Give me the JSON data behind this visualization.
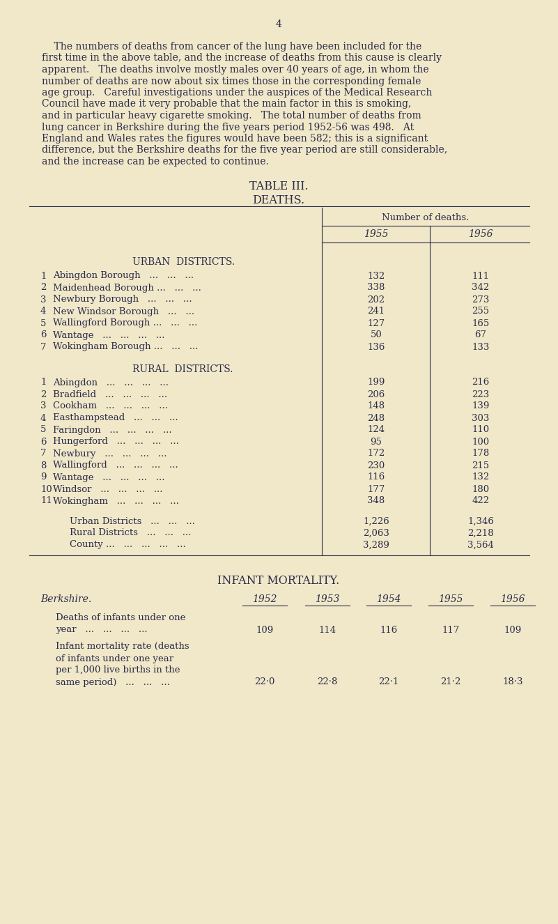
{
  "bg_color": "#f0e8c8",
  "text_color": "#2b2b4b",
  "page_number": "4",
  "para_lines": [
    "    The numbers of deaths from cancer of the lung have been included for the",
    "first time in the above table, and the increase of deaths from this cause is clearly",
    "apparent.   The deaths involve mostly males over 40 years of age, in whom the",
    "number of deaths are now about six times those in the corresponding female",
    "age group.   Careful investigations under the auspices of the Medical Research",
    "Council have made it very probable that the main factor in this is smoking,",
    "and in particular heavy cigarette smoking.   The total number of deaths from",
    "lung cancer in Berkshire during the five years period 1952-56 was 498.   At",
    "England and Wales rates the figures would have been 582; this is a significant",
    "difference, but the Berkshire deaths for the five year period are still considerable,",
    "and the increase can be expected to continue."
  ],
  "table_title_1": "TABLE III.",
  "table_title_2": "DEATHS.",
  "col_header_group": "Number of deaths.",
  "col_header_1": "1955",
  "col_header_2": "1956",
  "urban_header": "URBAN  DISTRICTS.",
  "urban_rows": [
    [
      "1",
      "Abingdon Borough   ...   ...   ...",
      "132",
      "111"
    ],
    [
      "2",
      "Maidenhead Borough ...   ...   ...",
      "338",
      "342"
    ],
    [
      "3",
      "Newbury Borough   ...   ...   ...",
      "202",
      "273"
    ],
    [
      "4",
      "New Windsor Borough   ...   ...",
      "241",
      "255"
    ],
    [
      "5",
      "Wallingford Borough ...   ...   ...",
      "127",
      "165"
    ],
    [
      "6",
      "Wantage   ...   ...   ...   ...",
      "50",
      "67"
    ],
    [
      "7",
      "Wokingham Borough ...   ...   ...",
      "136",
      "133"
    ]
  ],
  "rural_header": "RURAL  DISTRICTS.",
  "rural_rows": [
    [
      "1",
      "Abingdon   ...   ...   ...   ...",
      "199",
      "216"
    ],
    [
      "2",
      "Bradfield   ...   ...   ...   ...",
      "206",
      "223"
    ],
    [
      "3",
      "Cookham   ...   ...   ...   ...",
      "148",
      "139"
    ],
    [
      "4",
      "Easthampstead   ...   ...   ...",
      "248",
      "303"
    ],
    [
      "5",
      "Faringdon   ...   ...   ...   ...",
      "124",
      "110"
    ],
    [
      "6",
      "Hungerford   ...   ...   ...   ...",
      "95",
      "100"
    ],
    [
      "7",
      "Newbury   ...   ...   ...   ...",
      "172",
      "178"
    ],
    [
      "8",
      "Wallingford   ...   ...   ...   ...",
      "230",
      "215"
    ],
    [
      "9",
      "Wantage   ...   ...   ...   ...",
      "116",
      "132"
    ],
    [
      "10",
      "Windsor   ...   ...   ...   ...",
      "177",
      "180"
    ],
    [
      "11",
      "Wokingham   ...   ...   ...   ...",
      "348",
      "422"
    ]
  ],
  "totals_rows": [
    [
      "Urban Districts   ...   ...   ...",
      "1,226",
      "1,346"
    ],
    [
      "Rural Districts   ...   ...   ...",
      "2,063",
      "2,218"
    ],
    [
      "County ...   ...   ...   ...   ...",
      "3,289",
      "3,564"
    ]
  ],
  "infant_title": "INFANT MORTALITY.",
  "infant_label": "Berkshire.",
  "infant_years": [
    "1952",
    "1953",
    "1954",
    "1955",
    "1956"
  ],
  "infant_row1_line1": "Deaths of infants under one",
  "infant_row1_line2": "year   ...   ...   ...   ...",
  "infant_row1_values": [
    "109",
    "114",
    "116",
    "117",
    "109"
  ],
  "infant_row2_line1": "Infant mortality rate (deaths",
  "infant_row2_line2": "of infants under one year",
  "infant_row2_line3": "per 1,000 live births in the",
  "infant_row2_line4": "same period)   ...   ...   ...",
  "infant_row2_values": [
    "22·0",
    "22·8",
    "22·1",
    "21·2",
    "18·3"
  ]
}
